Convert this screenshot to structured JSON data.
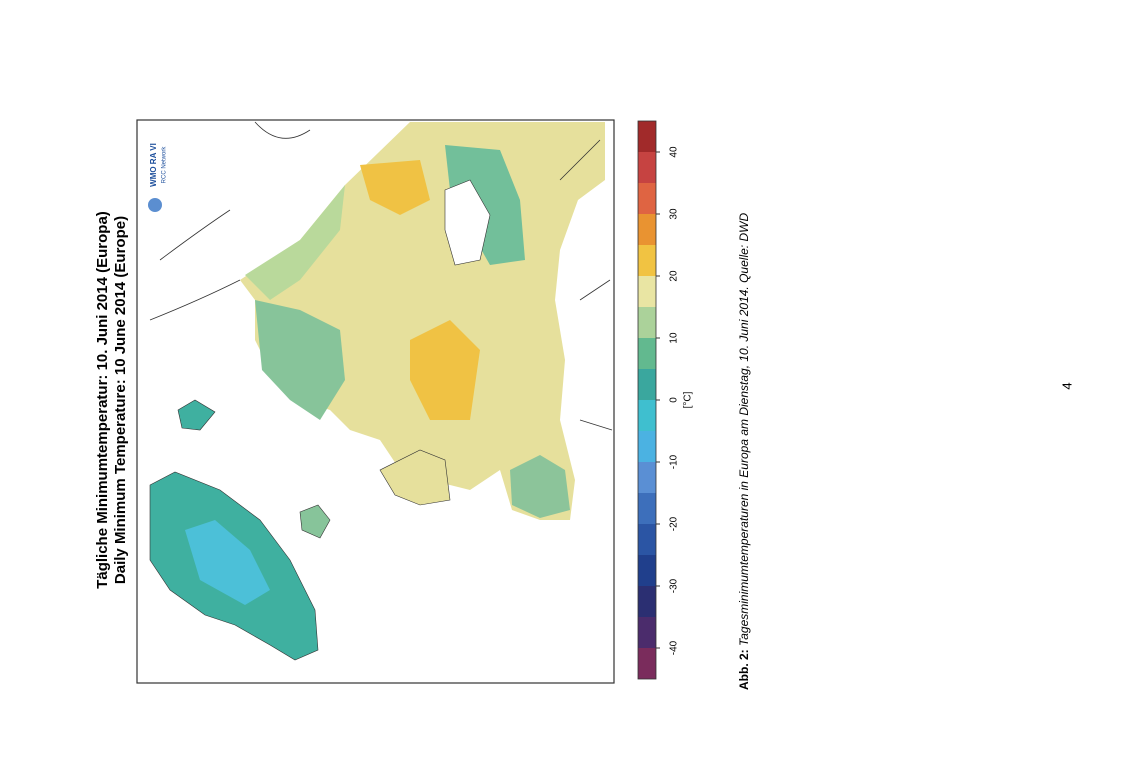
{
  "map_figure": {
    "title_de": "Tägliche Minimumtemperatur:  10. Juni 2014  (Europa)",
    "title_en": "Daily Minimum Temperature:  10 June 2014  (Europe)",
    "logo": {
      "line1": "WMO RA VI",
      "line2": "RCC Network"
    },
    "colorbar": {
      "limits": [
        -45,
        45
      ],
      "step": 5,
      "ticks": [
        -40,
        -30,
        -20,
        -10,
        0,
        10,
        20,
        30,
        40
      ],
      "unit": "[°C]",
      "colors": [
        "#7a2c5c",
        "#4b2c6c",
        "#2b2f72",
        "#203f8c",
        "#2b55a4",
        "#3d6fbb",
        "#5a8fd4",
        "#4bb2e2",
        "#3fbfcf",
        "#3aa79e",
        "#62b98f",
        "#abd29a",
        "#e9e5a3",
        "#f1c342",
        "#e99331",
        "#df6442",
        "#c64341",
        "#a12a2a"
      ]
    }
  },
  "caption": {
    "label": "Abb. 2:",
    "text": " Tagesminimumtemperaturen in Europa am Dienstag, 10. Juni 2014. Quelle: DWD"
  },
  "page_number": "4"
}
